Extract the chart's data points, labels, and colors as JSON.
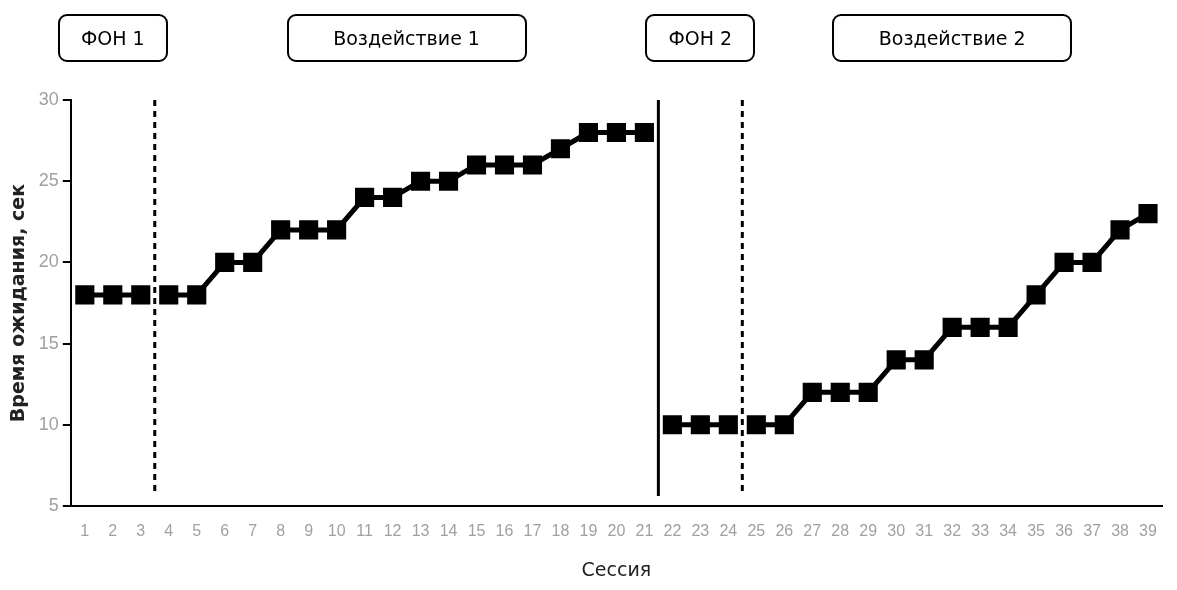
{
  "chart_data": {
    "type": "line",
    "xlabel": "Сессия",
    "ylabel": "Время ожидания, сек",
    "annotations": [
      "ФОН 1",
      "Воздействие 1",
      "ФОН 2",
      "Воздействие 2"
    ],
    "series": [
      {
        "color": "#000000",
        "x": [
          1,
          2,
          3
        ],
        "values": [
          18,
          18,
          18
        ]
      },
      {
        "color": "#000000",
        "x": [
          4,
          5,
          6,
          7,
          8,
          9,
          10,
          11,
          12,
          13,
          14,
          15,
          16,
          17,
          18,
          19,
          20,
          21
        ],
        "values": [
          18,
          18,
          20,
          20,
          22,
          22,
          22,
          24,
          24,
          25,
          25,
          26,
          26,
          26,
          27,
          28,
          28,
          28
        ]
      },
      {
        "color": "#000000",
        "x": [
          22,
          23,
          24
        ],
        "values": [
          10,
          10,
          10
        ]
      },
      {
        "color": "#000000",
        "x": [
          25,
          26,
          27,
          28,
          29,
          30,
          31,
          32,
          33,
          34,
          35,
          36,
          37,
          38,
          39
        ],
        "values": [
          10,
          10,
          12,
          12,
          12,
          14,
          14,
          16,
          16,
          16,
          18,
          20,
          20,
          22,
          23
        ]
      }
    ],
    "xlim": [
      0.5,
      39.5
    ],
    "xticks": [
      1,
      2,
      3,
      4,
      5,
      6,
      7,
      8,
      9,
      10,
      11,
      12,
      13,
      14,
      15,
      16,
      17,
      18,
      19,
      20,
      21,
      22,
      23,
      24,
      25,
      26,
      27,
      28,
      29,
      30,
      31,
      32,
      33,
      34,
      35,
      36,
      37,
      38,
      39
    ],
    "ylim": [
      5,
      30
    ],
    "yticks": [
      5,
      10,
      15,
      20,
      25,
      30
    ],
    "ref_lines": [
      {
        "axis": "x",
        "value": 3.5,
        "line_style": "dashed",
        "color": "#000000"
      },
      {
        "axis": "x",
        "value": 21.5,
        "line_style": "solid",
        "color": "#000000"
      },
      {
        "axis": "x",
        "value": 24.5,
        "line_style": "dashed",
        "color": "#000000"
      }
    ],
    "grid": false,
    "legend": false,
    "marker": "square",
    "line_style": "solid"
  }
}
